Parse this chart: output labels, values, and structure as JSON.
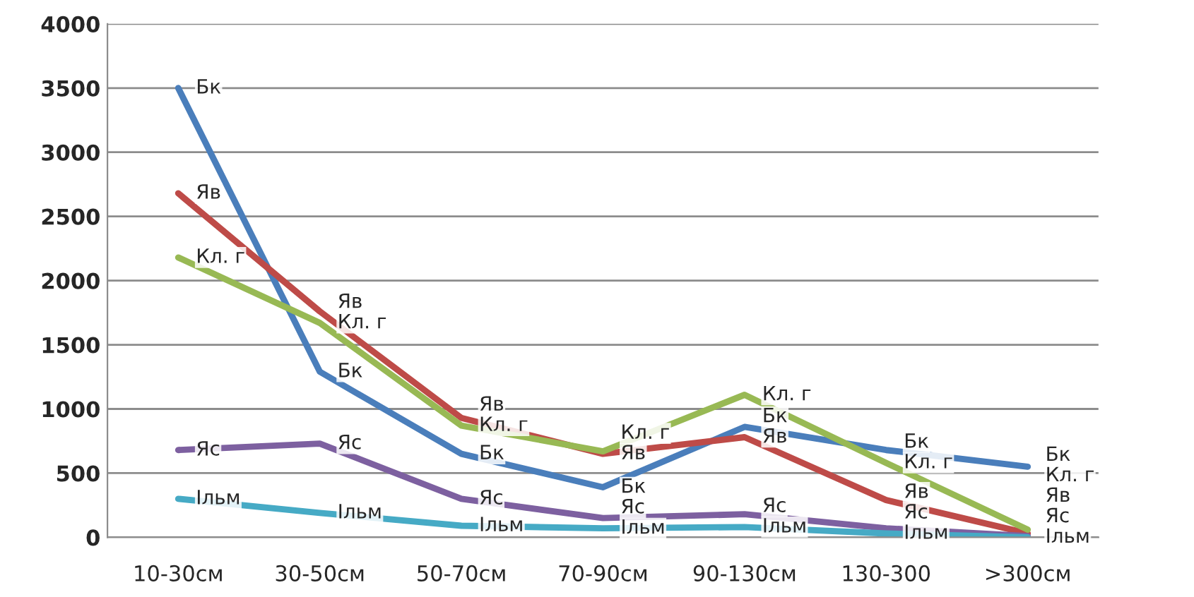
{
  "chart_data": {
    "type": "line",
    "categories": [
      "10-30см",
      "30-50см",
      "50-70см",
      "70-90см",
      "90-130см",
      "130-300",
      ">300см"
    ],
    "series": [
      {
        "name": "Бк",
        "color": "#4a7ebb",
        "values": [
          3500,
          1290,
          650,
          390,
          860,
          680,
          550
        ]
      },
      {
        "name": "Яв",
        "color": "#be4b48",
        "values": [
          2680,
          1760,
          930,
          650,
          780,
          290,
          30
        ]
      },
      {
        "name": "Кл. г",
        "color": "#98b954",
        "values": [
          2180,
          1670,
          870,
          670,
          1110,
          580,
          60
        ]
      },
      {
        "name": "Яс",
        "color": "#7d60a0",
        "values": [
          680,
          730,
          300,
          150,
          180,
          70,
          10
        ]
      },
      {
        "name": "Ільм",
        "color": "#46aac5",
        "values": [
          300,
          190,
          90,
          70,
          80,
          30,
          0
        ]
      }
    ],
    "ylim": [
      0,
      4000
    ],
    "yticks": [
      0,
      500,
      1000,
      1500,
      2000,
      2500,
      3000,
      3500,
      4000
    ],
    "grid": "y",
    "legend": false,
    "marker": "none",
    "line_style": "solid"
  }
}
